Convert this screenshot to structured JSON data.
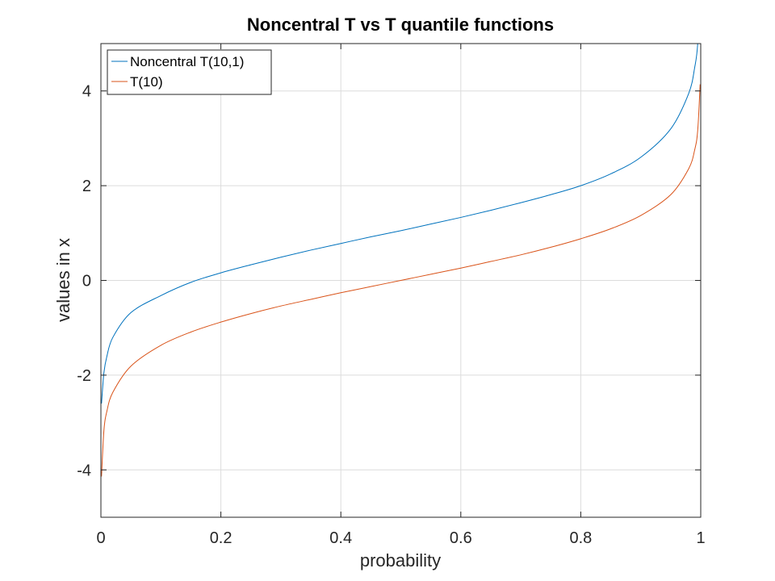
{
  "chart_data": {
    "type": "line",
    "title": "Noncentral T vs T quantile functions",
    "xlabel": "probability",
    "ylabel": "values in x",
    "xlim": [
      0,
      1
    ],
    "ylim": [
      -5,
      5
    ],
    "x_ticks": [
      0,
      0.2,
      0.4,
      0.6,
      0.8,
      1
    ],
    "x_tick_labels": [
      "0",
      "0.2",
      "0.4",
      "0.6",
      "0.8",
      "1"
    ],
    "y_ticks": [
      -4,
      -2,
      0,
      2,
      4
    ],
    "y_tick_labels": [
      "-4",
      "-2",
      "0",
      "2",
      "4"
    ],
    "grid": true,
    "legend_position": "top-left",
    "x": [
      0.001,
      0.005,
      0.01,
      0.02,
      0.05,
      0.1,
      0.15,
      0.2,
      0.25,
      0.3,
      0.35,
      0.4,
      0.45,
      0.5,
      0.55,
      0.6,
      0.65,
      0.7,
      0.75,
      0.8,
      0.85,
      0.9,
      0.95,
      0.98,
      0.99,
      0.995,
      0.999
    ],
    "series": [
      {
        "name": "Noncentral T(10,1)",
        "color": "#0072BD",
        "values": [
          -2.6,
          -1.95,
          -1.6,
          -1.2,
          -0.68,
          -0.32,
          -0.04,
          0.16,
          0.33,
          0.49,
          0.64,
          0.78,
          0.92,
          1.05,
          1.19,
          1.33,
          1.48,
          1.64,
          1.81,
          2.0,
          2.25,
          2.6,
          3.2,
          3.95,
          4.5,
          5.0,
          6.2
        ]
      },
      {
        "name": "T(10)",
        "color": "#D95319",
        "values": [
          -4.14,
          -3.17,
          -2.76,
          -2.36,
          -1.81,
          -1.37,
          -1.09,
          -0.88,
          -0.7,
          -0.54,
          -0.4,
          -0.26,
          -0.13,
          0.0,
          0.13,
          0.26,
          0.4,
          0.54,
          0.7,
          0.88,
          1.09,
          1.37,
          1.81,
          2.36,
          2.76,
          3.17,
          4.14
        ]
      }
    ]
  }
}
